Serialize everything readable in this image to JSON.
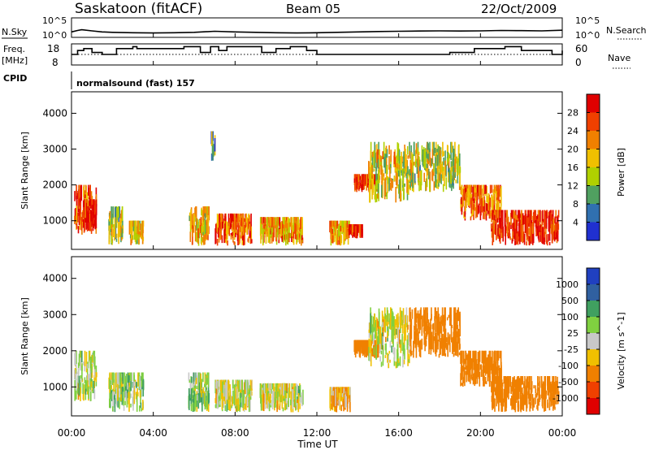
{
  "header": {
    "station": "Saskatoon (fitACF)",
    "beam": "Beam 05",
    "date": "22/Oct/2009"
  },
  "strips": {
    "nsky_label": "N.Sky",
    "nsearch_label": "N.Search",
    "nsky_ticks": [
      "10^5",
      "10^0"
    ],
    "freq_label": "Freq.",
    "freq_unit": "[MHz]",
    "freq_ticks": [
      "18",
      "8"
    ],
    "nave_label": "Nave",
    "nave_ticks": [
      "60",
      "0"
    ],
    "cpid_label": "CPID",
    "cpid_value": "normalsound (fast) 157"
  },
  "axes": {
    "ylabel": "Slant Range [km]",
    "yticks": [
      "1000",
      "2000",
      "3000",
      "4000"
    ],
    "xticks": [
      "00:00",
      "04:00",
      "08:00",
      "12:00",
      "16:00",
      "20:00",
      "00:00"
    ],
    "xlabel": "Time UT"
  },
  "power_scale": {
    "title": "Power [dB]",
    "labels": [
      "28",
      "24",
      "20",
      "16",
      "12",
      "8",
      "4"
    ],
    "colors": [
      "#e00000",
      "#f04000",
      "#f08000",
      "#f0c000",
      "#b0d000",
      "#50a060",
      "#3070b0",
      "#2030d0"
    ]
  },
  "velocity_scale": {
    "title": "Velocity [m s^-1]",
    "labels": [
      "1000",
      "500",
      "100",
      "25",
      "-25",
      "-100",
      "-500",
      "-1000"
    ],
    "colors": [
      "#2040c0",
      "#3060a0",
      "#40a060",
      "#80d040",
      "#c8c8c8",
      "#f0c000",
      "#f08000",
      "#f04000",
      "#e00000"
    ]
  },
  "chart_data": [
    {
      "type": "line",
      "title": "N.Sky / N.Search",
      "x_range_hours": [
        0,
        24
      ],
      "y_scale": "log",
      "ylim": [
        1,
        100000
      ],
      "x": [
        0,
        0.3,
        0.5,
        1.0,
        1.5,
        2,
        3,
        4,
        5,
        6,
        7,
        8,
        9,
        10,
        11,
        12,
        13,
        14,
        15,
        16,
        17,
        18,
        19,
        20,
        21,
        22,
        23,
        24
      ],
      "series": [
        {
          "name": "N.Sky",
          "values": [
            20,
            50,
            80,
            40,
            20,
            15,
            12,
            10,
            12,
            15,
            30,
            20,
            15,
            12,
            10,
            12,
            15,
            20,
            25,
            30,
            35,
            40,
            35,
            40,
            50,
            45,
            40,
            60
          ]
        }
      ]
    },
    {
      "type": "line",
      "title": "Freq. / Nave",
      "x_range_hours": [
        0,
        24
      ],
      "ylim": [
        8,
        18
      ],
      "x": [
        0,
        0.3,
        0.6,
        1.0,
        1.5,
        2.2,
        3.0,
        3.2,
        5.5,
        6.3,
        6.8,
        7.2,
        7.6,
        9.3,
        9.5,
        10.0,
        10.7,
        11.5,
        12.0,
        13.5,
        15.3,
        16.8,
        18.5,
        19.7,
        21.2,
        22.0,
        23.5,
        24
      ],
      "series": [
        {
          "name": "Freq.",
          "values": [
            13,
            15,
            16,
            14,
            13,
            16,
            17,
            16,
            17,
            14,
            17,
            15,
            17,
            14,
            14,
            16,
            17,
            15,
            13,
            13,
            13,
            13,
            14,
            16,
            17,
            15,
            13,
            15
          ]
        }
      ]
    },
    {
      "type": "heatmap",
      "title": "Power [dB]",
      "x_range_hours": [
        0,
        24
      ],
      "ylim": [
        200,
        4600
      ],
      "xlabel": "Time UT",
      "ylabel": "Slant Range [km]",
      "zlim": [
        0,
        30
      ],
      "blobs": [
        {
          "t": [
            0.1,
            1.2
          ],
          "r": [
            600,
            2000
          ],
          "v": 24
        },
        {
          "t": [
            0.5,
            1.2
          ],
          "r": [
            700,
            1600
          ],
          "v": 28
        },
        {
          "t": [
            1.8,
            2.5
          ],
          "r": [
            300,
            1400
          ],
          "v": 14
        },
        {
          "t": [
            2.8,
            3.5
          ],
          "r": [
            300,
            1000
          ],
          "v": 16
        },
        {
          "t": [
            5.7,
            6.7
          ],
          "r": [
            300,
            1400
          ],
          "v": 18
        },
        {
          "t": [
            6.8,
            7.0
          ],
          "r": [
            2600,
            3500
          ],
          "v": 10
        },
        {
          "t": [
            7.0,
            8.8
          ],
          "r": [
            300,
            1200
          ],
          "v": 22
        },
        {
          "t": [
            9.2,
            11.3
          ],
          "r": [
            300,
            1100
          ],
          "v": 20
        },
        {
          "t": [
            12.6,
            13.6
          ],
          "r": [
            300,
            1000
          ],
          "v": 18
        },
        {
          "t": [
            13.5,
            14.2
          ],
          "r": [
            500,
            900
          ],
          "v": 26
        },
        {
          "t": [
            13.8,
            15.0
          ],
          "r": [
            1800,
            2300
          ],
          "v": 26
        },
        {
          "t": [
            14.5,
            16.5
          ],
          "r": [
            1500,
            3200
          ],
          "v": 16
        },
        {
          "t": [
            16.5,
            19.0
          ],
          "r": [
            1800,
            3200
          ],
          "v": 14
        },
        {
          "t": [
            19.0,
            21.0
          ],
          "r": [
            1000,
            2000
          ],
          "v": 22
        },
        {
          "t": [
            20.5,
            23.8
          ],
          "r": [
            300,
            1300
          ],
          "v": 26
        }
      ]
    },
    {
      "type": "heatmap",
      "title": "Velocity [m s^-1]",
      "x_range_hours": [
        0,
        24
      ],
      "ylim": [
        200,
        4600
      ],
      "xlabel": "Time UT",
      "ylabel": "Slant Range [km]",
      "zlim": [
        -1000,
        1000
      ],
      "blobs": [
        {
          "t": [
            0.1,
            1.2
          ],
          "r": [
            600,
            2000
          ],
          "v": 0
        },
        {
          "t": [
            1.8,
            3.5
          ],
          "r": [
            300,
            1400
          ],
          "v": 50
        },
        {
          "t": [
            5.7,
            6.7
          ],
          "r": [
            300,
            1400
          ],
          "v": 40
        },
        {
          "t": [
            7.0,
            8.8
          ],
          "r": [
            300,
            1200
          ],
          "v": 0
        },
        {
          "t": [
            9.2,
            11.3
          ],
          "r": [
            300,
            1100
          ],
          "v": 0
        },
        {
          "t": [
            12.6,
            13.6
          ],
          "r": [
            300,
            1000
          ],
          "v": -80
        },
        {
          "t": [
            13.8,
            15.0
          ],
          "r": [
            1800,
            2300
          ],
          "v": -300
        },
        {
          "t": [
            14.5,
            16.5
          ],
          "r": [
            1500,
            3200
          ],
          "v": 0
        },
        {
          "t": [
            16.5,
            19.0
          ],
          "r": [
            1800,
            3200
          ],
          "v": -300
        },
        {
          "t": [
            19.0,
            21.0
          ],
          "r": [
            1000,
            2000
          ],
          "v": -300
        },
        {
          "t": [
            20.5,
            23.8
          ],
          "r": [
            300,
            1300
          ],
          "v": -300
        }
      ]
    }
  ]
}
